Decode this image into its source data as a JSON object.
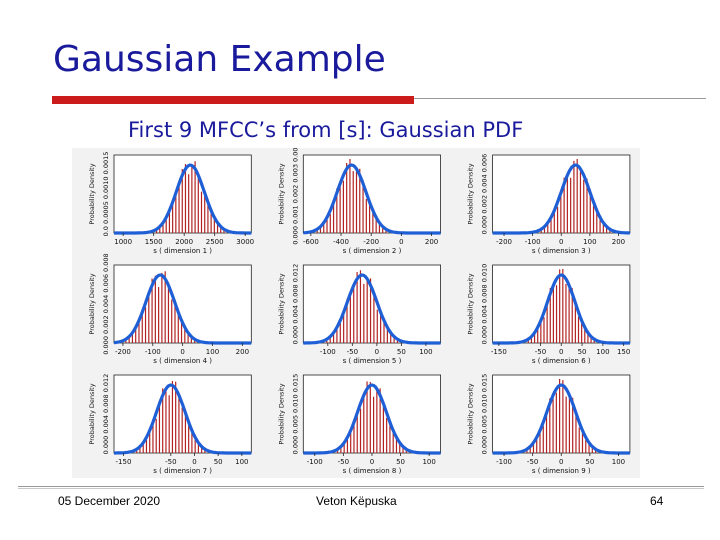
{
  "slide": {
    "title": "Gaussian Example",
    "subtitle": "First 9 MFCC’s from [s]: Gaussian PDF"
  },
  "footer": {
    "date": "05 December 2020",
    "author": "Veton Këpuska",
    "page": "64"
  },
  "colors": {
    "title": "#1a1a9c",
    "accent_bar": "#cc1b1b",
    "histogram": "#b22222",
    "gaussian_curve": "#1f5fd6"
  },
  "chart_data": [
    {
      "type": "bar",
      "xlabel": "s ( dimension 1 )",
      "ylabel": "Probability Density",
      "xticks": [
        1000,
        1500,
        2000,
        2500,
        3000
      ],
      "yticks_label": "0.0 0.0005 0.0010 0.0015",
      "mean": 2100,
      "sd": 230,
      "xlim": [
        850,
        3100
      ]
    },
    {
      "type": "bar",
      "xlabel": "s ( dimension 2 )",
      "ylabel": "Probability Density",
      "xticks": [
        -600,
        -400,
        -200,
        0,
        200
      ],
      "yticks_label": "0.000 0.001 0.002 0.003 0.004",
      "mean": -330,
      "sd": 95,
      "xlim": [
        -650,
        260
      ]
    },
    {
      "type": "bar",
      "xlabel": "s ( dimension 3 )",
      "ylabel": "Probability Density",
      "xticks": [
        -200,
        -100,
        0,
        100,
        200
      ],
      "yticks_label": "0.000 0.002 0.004 0.006",
      "mean": 50,
      "sd": 50,
      "xlim": [
        -240,
        240
      ]
    },
    {
      "type": "bar",
      "xlabel": "s ( dimension 4 )",
      "ylabel": "Probability Density",
      "xticks": [
        -200,
        -100,
        0,
        100,
        200
      ],
      "yticks_label": "0.000 0.002 0.004 0.006 0.008",
      "mean": -75,
      "sd": 48,
      "xlim": [
        -230,
        230
      ]
    },
    {
      "type": "bar",
      "xlabel": "s ( dimension 5 )",
      "ylabel": "Probability Density",
      "xticks": [
        -100,
        -50,
        0,
        50,
        100
      ],
      "yticks_label": "0.000 0.004 0.008 0.012",
      "mean": -30,
      "sd": 30,
      "xlim": [
        -150,
        130
      ]
    },
    {
      "type": "bar",
      "xlabel": "s ( dimension 6 )",
      "ylabel": "Probability Density",
      "xticks": [
        -150,
        -50,
        0,
        50,
        100,
        150
      ],
      "yticks_label": "0.000 0.004 0.008 0.010",
      "mean": 0,
      "sd": 33,
      "xlim": [
        -165,
        165
      ]
    },
    {
      "type": "bar",
      "xlabel": "s ( dimension 7 )",
      "ylabel": "Probability Density",
      "xticks": [
        -150,
        -50,
        0,
        50,
        100
      ],
      "yticks_label": "0.000 0.004 0.008 0.012",
      "mean": -50,
      "sd": 30,
      "xlim": [
        -170,
        120
      ]
    },
    {
      "type": "bar",
      "xlabel": "s ( dimension 8 )",
      "ylabel": "Probability Density",
      "xticks": [
        -100,
        -50,
        0,
        50,
        100
      ],
      "yticks_label": "0.000 0.005 0.010 0.015",
      "mean": 0,
      "sd": 25,
      "xlim": [
        -120,
        120
      ]
    },
    {
      "type": "bar",
      "xlabel": "s ( dimension 9 )",
      "ylabel": "Probability Density",
      "xticks": [
        -100,
        -50,
        0,
        50,
        100
      ],
      "yticks_label": "0.000 0.005 0.010 0.015",
      "mean": 0,
      "sd": 25,
      "xlim": [
        -120,
        120
      ]
    }
  ]
}
